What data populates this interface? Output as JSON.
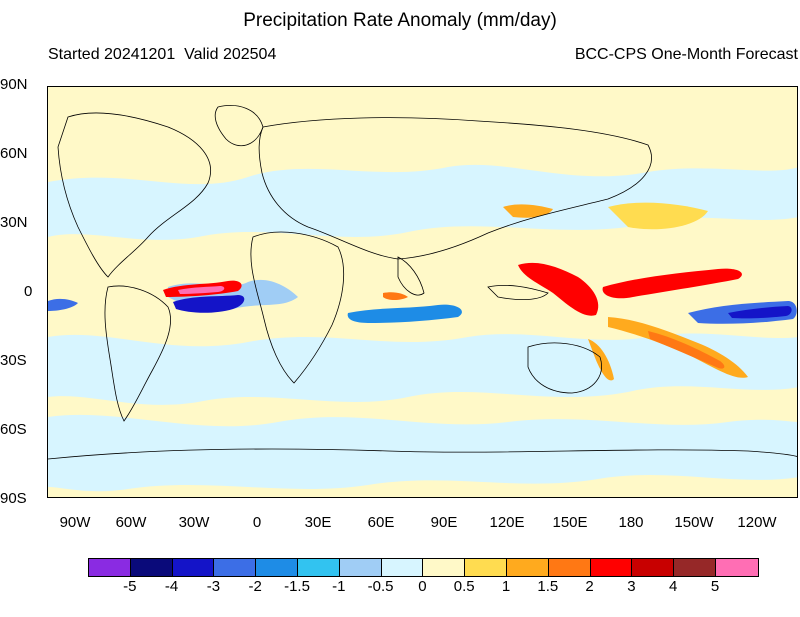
{
  "header": {
    "title": "Precipitation Rate Anomaly (mm/day)",
    "started_valid": "Started 20241201  Valid 202504",
    "model": "BCC-CPS One-Month Forecast"
  },
  "axes": {
    "lat_labels": [
      "90N",
      "60N",
      "30N",
      "0",
      "30S",
      "60S",
      "90S"
    ],
    "lon_labels": [
      "90W",
      "60W",
      "30W",
      "0",
      "30E",
      "60E",
      "90E",
      "120E",
      "150E",
      "180",
      "150W",
      "120W"
    ]
  },
  "colorbar": {
    "labels": [
      "-5",
      "-4",
      "-3",
      "-2",
      "-1.5",
      "-1",
      "-0.5",
      "0",
      "0.5",
      "1",
      "1.5",
      "2",
      "3",
      "4",
      "5"
    ],
    "colors": [
      "#8a2be2",
      "#0a0a7a",
      "#1414c8",
      "#3c6ee6",
      "#1e8ce6",
      "#32c3f0",
      "#a0cdf5",
      "#d7f5ff",
      "#fff9c8",
      "#ffdc50",
      "#ffaa1e",
      "#ff7814",
      "#ff0000",
      "#c80000",
      "#962828",
      "#ff6eb4"
    ]
  },
  "map_colors": {
    "dry_strong": "#1414c8",
    "dry_mid": "#3c6ee6",
    "dry_light": "#a0cdf5",
    "dry_faint": "#d7f5ff",
    "neutral": "#fff9c8",
    "wet_light": "#ffdc50",
    "wet_mid": "#ffaa1e",
    "wet_strong": "#ff0000",
    "wet_max": "#ff6eb4"
  }
}
